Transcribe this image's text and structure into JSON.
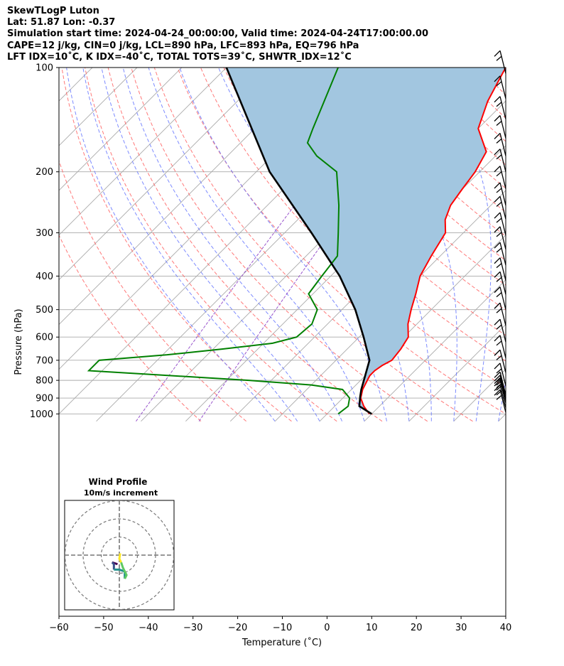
{
  "header": {
    "lines": [
      "SkewTLogP Luton",
      "Lat: 51.87   Lon: -0.37",
      "Simulation start time: 2024-04-24_00:00:00, Valid time: 2024-04-24T17:00:00.00",
      "CAPE=12 j/kg, CIN=0 j/kg, LCL=890 hPa, LFC=893 hPa, EQ=796 hPa",
      "LFT IDX=10˚C, K IDX=-40˚C, TOTAL TOTS=39˚C, SHWTR_IDX=12˚C"
    ]
  },
  "colors": {
    "temperature": "#ff0000",
    "dewpoint": "#008000",
    "parcel": "#000000",
    "cape_fill": "#a2c6e0",
    "dry_adiabat": "#ff6060",
    "moist_adiabat": "#6677ff",
    "mixing_ratio": "#9955cc",
    "isotherm": "#aaaaaa",
    "isobar": "#aaaaaa"
  },
  "chart_data": [
    {
      "type": "line",
      "subtype": "skew-T log-P diagram",
      "title": "",
      "xlabel": "Temperature (˚C)",
      "ylabel": "Pressure (hPa)",
      "xlim": [
        -60,
        40
      ],
      "ylim": [
        1050,
        100
      ],
      "y_scale": "log",
      "grid": true,
      "x_ticks": [
        -60,
        -50,
        -40,
        -30,
        -20,
        -10,
        0,
        10,
        20,
        30,
        40
      ],
      "x_tick_labels": [
        "−60",
        "−50",
        "−40",
        "−30",
        "−20",
        "−10",
        "0",
        "10",
        "20",
        "30",
        "40"
      ],
      "y_ticks": [
        100,
        200,
        300,
        400,
        500,
        600,
        700,
        800,
        900,
        1000
      ],
      "y_tick_labels": [
        "100",
        "200",
        "300",
        "400",
        "500",
        "600",
        "700",
        "800",
        "900",
        "1000"
      ],
      "series": [
        {
          "role": "temperature",
          "points": [
            [
              9.5,
              1000
            ],
            [
              8,
              975
            ],
            [
              6.5,
              950
            ],
            [
              4,
              900
            ],
            [
              2.5,
              850
            ],
            [
              1.5,
              800
            ],
            [
              1,
              775
            ],
            [
              1,
              750
            ],
            [
              1.5,
              725
            ],
            [
              2.5,
              700
            ],
            [
              2,
              650
            ],
            [
              1,
              600
            ],
            [
              -2,
              550
            ],
            [
              -4.5,
              500
            ],
            [
              -7,
              450
            ],
            [
              -10,
              400
            ],
            [
              -12,
              350
            ],
            [
              -14,
              300
            ],
            [
              -17,
              275
            ],
            [
              -19,
              250
            ],
            [
              -20,
              225
            ],
            [
              -20.5,
              212
            ],
            [
              -21,
              200
            ],
            [
              -23,
              175
            ],
            [
              -30,
              150
            ],
            [
              -34,
              125
            ],
            [
              -37.5,
              100
            ]
          ]
        },
        {
          "role": "dewpoint",
          "points": [
            [
              2.5,
              1000
            ],
            [
              3,
              950
            ],
            [
              1.5,
              900
            ],
            [
              -2,
              850
            ],
            [
              -10,
              825
            ],
            [
              -25,
              800
            ],
            [
              -63,
              750
            ],
            [
              -63,
              700
            ],
            [
              -49,
              675
            ],
            [
              -38,
              650
            ],
            [
              -28,
              625
            ],
            [
              -24,
              600
            ],
            [
              -23.5,
              550
            ],
            [
              -25.5,
              500
            ],
            [
              -31,
              450
            ],
            [
              -32,
              400
            ],
            [
              -33,
              350
            ],
            [
              -38,
              300
            ],
            [
              -44,
              250
            ],
            [
              -52,
              200
            ],
            [
              -60,
              180
            ],
            [
              -65,
              165
            ],
            [
              -67,
              150
            ],
            [
              -75,
              100
            ]
          ]
        },
        {
          "role": "parcel",
          "points": [
            [
              10,
              1000
            ],
            [
              5.5,
              950
            ],
            [
              3.5,
              890
            ],
            [
              2.2,
              850
            ],
            [
              -2.5,
              700
            ],
            [
              -9,
              600
            ],
            [
              -17,
              500
            ],
            [
              -28,
              400
            ],
            [
              -44,
              300
            ],
            [
              -67,
              200
            ],
            [
              -100,
              100
            ]
          ]
        }
      ],
      "cape_region": "shaded between parcel and temperature profiles"
    },
    {
      "type": "scatter",
      "subtype": "hodograph",
      "title": "Wind Profile",
      "subtitle": "10m/s increment",
      "ring_radii": [
        10,
        20,
        30
      ],
      "segments": [
        {
          "color": "#440154",
          "points": [
            [
              -1,
              -5
            ],
            [
              -4,
              -4
            ]
          ]
        },
        {
          "color": "#3b528b",
          "points": [
            [
              -4,
              -4
            ],
            [
              -3,
              -5
            ],
            [
              -3,
              -8
            ]
          ]
        },
        {
          "color": "#21908c",
          "points": [
            [
              -3,
              -8
            ],
            [
              0,
              -8
            ],
            [
              3,
              -9
            ],
            [
              3,
              -13
            ]
          ]
        },
        {
          "color": "#5ec962",
          "points": [
            [
              3,
              -13
            ],
            [
              4,
              -11
            ],
            [
              2,
              -7
            ],
            [
              1,
              -4
            ]
          ]
        },
        {
          "color": "#fde725",
          "points": [
            [
              1,
              -4
            ],
            [
              0,
              -2
            ],
            [
              0.5,
              1
            ]
          ]
        }
      ]
    }
  ],
  "wind_barbs": {
    "x_position": "right edge at 40˚C",
    "pressures": [
      104,
      123,
      141,
      160,
      180,
      200,
      224,
      250,
      274,
      305,
      335,
      372,
      412,
      452,
      500,
      556,
      620,
      690,
      760,
      830,
      880,
      900,
      915,
      930,
      960,
      990
    ]
  }
}
